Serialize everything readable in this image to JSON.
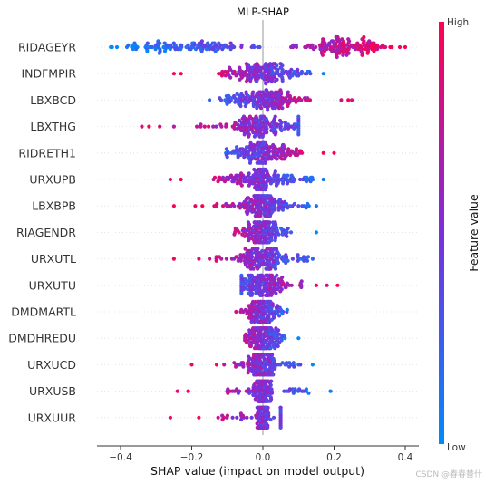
{
  "chart_data": {
    "type": "scatter",
    "subtype": "shap-beeswarm",
    "title": "MLP-SHAP",
    "xlabel": "SHAP value (impact on model output)",
    "ylabel": "",
    "xlim": [
      -0.48,
      0.44
    ],
    "xticks": [
      "-0.4",
      "-0.2",
      "0.0",
      "0.2",
      "0.4"
    ],
    "grid": false,
    "colorbar": {
      "label": "Feature value",
      "high": "High",
      "low": "Low",
      "low_color": "#008afb",
      "mid_color": "#7b2fdc",
      "high_color": "#ff0051"
    },
    "features": [
      {
        "name": "RIDAGEYR",
        "min": -0.43,
        "max": 0.4,
        "low_side": "negative",
        "spread": 0.42,
        "outliers": []
      },
      {
        "name": "INDFMPIR",
        "min": -0.25,
        "max": 0.17,
        "low_side": "positive",
        "spread": 0.1,
        "outliers": [
          -0.25,
          -0.23,
          0.17
        ]
      },
      {
        "name": "LBXBCD",
        "min": -0.15,
        "max": 0.25,
        "low_side": "negative",
        "spread": 0.12,
        "outliers": [
          -0.15,
          0.22,
          0.24,
          0.25
        ]
      },
      {
        "name": "LBXTHG",
        "min": -0.34,
        "max": 0.1,
        "low_side": "positive",
        "spread": 0.08,
        "outliers": [
          -0.34,
          -0.32,
          -0.29,
          -0.25
        ]
      },
      {
        "name": "RIDRETH1",
        "min": -0.13,
        "max": 0.2,
        "low_side": "negative",
        "spread": 0.09,
        "outliers": [
          0.17,
          0.2
        ]
      },
      {
        "name": "URXUPB",
        "min": -0.26,
        "max": 0.17,
        "low_side": "positive",
        "spread": 0.09,
        "outliers": [
          -0.26,
          -0.23,
          0.17
        ]
      },
      {
        "name": "LBXBPB",
        "min": -0.25,
        "max": 0.15,
        "low_side": "positive",
        "spread": 0.07,
        "outliers": [
          -0.25,
          -0.19,
          -0.17,
          0.15
        ]
      },
      {
        "name": "RIAGENDR",
        "min": -0.1,
        "max": 0.15,
        "low_side": "positive",
        "spread": 0.05,
        "outliers": [
          0.15
        ]
      },
      {
        "name": "URXUTL",
        "min": -0.25,
        "max": 0.14,
        "low_side": "positive",
        "spread": 0.07,
        "outliers": [
          -0.25,
          -0.18,
          -0.15,
          0.14
        ]
      },
      {
        "name": "URXUTU",
        "min": -0.06,
        "max": 0.21,
        "low_side": "negative",
        "spread": 0.06,
        "outliers": [
          0.15,
          0.18,
          0.21
        ]
      },
      {
        "name": "DMDMARTL",
        "min": -0.14,
        "max": 0.1,
        "low_side": "positive",
        "spread": 0.05,
        "outliers": []
      },
      {
        "name": "DMDHREDU",
        "min": -0.1,
        "max": 0.1,
        "low_side": "positive",
        "spread": 0.05,
        "outliers": [
          0.1
        ]
      },
      {
        "name": "URXUCD",
        "min": -0.2,
        "max": 0.14,
        "low_side": "positive",
        "spread": 0.04,
        "outliers": [
          -0.2,
          -0.13,
          0.14
        ]
      },
      {
        "name": "URXUSB",
        "min": -0.24,
        "max": 0.19,
        "low_side": "positive",
        "spread": 0.03,
        "outliers": [
          -0.24,
          -0.21,
          0.19
        ]
      },
      {
        "name": "URXUUR",
        "min": -0.26,
        "max": 0.05,
        "low_side": "positive",
        "spread": 0.02,
        "outliers": [
          -0.26,
          -0.18,
          0.05
        ]
      }
    ]
  },
  "watermark": "CSDN @春春替什"
}
